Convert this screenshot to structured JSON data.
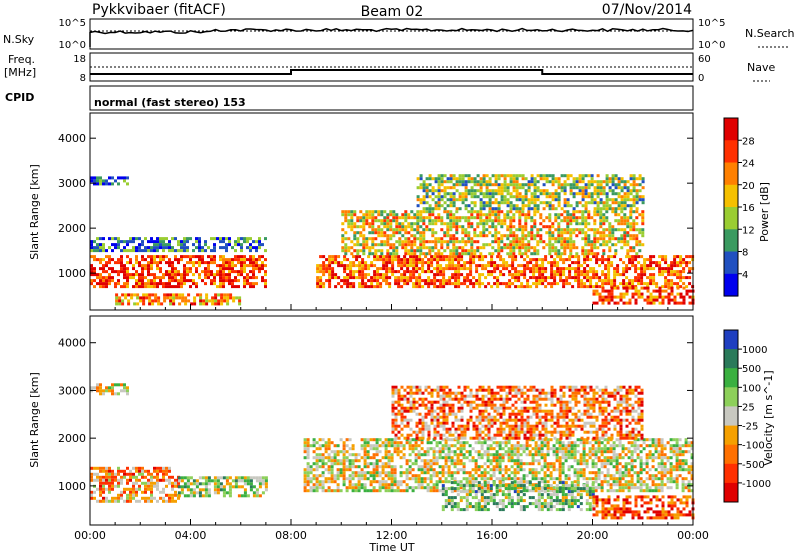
{
  "header": {
    "station": "Pykkvibaer (fitACF)",
    "beam": "Beam 02",
    "date": "07/Nov/2014"
  },
  "nsky_panel": {
    "label": "N.Sky",
    "left_ticks": [
      "10^5",
      "10^0"
    ],
    "right_label": "N.Search",
    "right_ticks": [
      "10^5",
      "10^0"
    ]
  },
  "freq_panel": {
    "label_top": "Freq.",
    "label_bottom": "[MHz]",
    "left_ticks": [
      "18",
      "8"
    ],
    "right_label": "Nave",
    "right_ticks": [
      "60",
      "0"
    ],
    "cpid_label": "CPID"
  },
  "cpid_panel": {
    "text": "normal (fast stereo) 153"
  },
  "chart_data": [
    {
      "type": "heatmap",
      "name": "power",
      "ylabel": "Slant Range [km]",
      "yticks": [
        1000,
        2000,
        3000,
        4000
      ],
      "ylim": [
        180,
        4560
      ],
      "xlim": [
        0,
        24
      ],
      "colorbar_label": "Power [dB]",
      "colorbar_ticks": [
        "28",
        "24",
        "20",
        "16",
        "12",
        "8",
        "4"
      ],
      "colors": [
        "#0000ee",
        "#2050c0",
        "#3a9a60",
        "#9acd32",
        "#f5c000",
        "#ff8000",
        "#ff3000",
        "#e00000"
      ],
      "regions": [
        {
          "x0": 0.0,
          "x1": 7.0,
          "y0": 700,
          "y1": 1400,
          "value": 26
        },
        {
          "x0": 0.0,
          "x1": 7.0,
          "y0": 1500,
          "y1": 1800,
          "value": 8
        },
        {
          "x0": 0.0,
          "x1": 1.5,
          "y0": 2950,
          "y1": 3150,
          "value": 6
        },
        {
          "x0": 1.0,
          "x1": 6.0,
          "y0": 300,
          "y1": 550,
          "value": 22
        },
        {
          "x0": 9.0,
          "x1": 24.0,
          "y0": 700,
          "y1": 1400,
          "value": 24
        },
        {
          "x0": 10.0,
          "x1": 22.0,
          "y0": 1400,
          "y1": 2400,
          "value": 18
        },
        {
          "x0": 13.0,
          "x1": 22.0,
          "y0": 2400,
          "y1": 3200,
          "value": 14
        },
        {
          "x0": 20.0,
          "x1": 24.0,
          "y0": 300,
          "y1": 700,
          "value": 26
        }
      ]
    },
    {
      "type": "heatmap",
      "name": "velocity",
      "ylabel": "Slant Range [km]",
      "yticks": [
        1000,
        2000,
        3000,
        4000
      ],
      "ylim": [
        180,
        4560
      ],
      "xlim": [
        0,
        24
      ],
      "xlabel": "Time UT",
      "xticks": [
        "00:00",
        "04:00",
        "08:00",
        "12:00",
        "16:00",
        "20:00",
        "00:00"
      ],
      "colorbar_label": "Velocity [m s^-1]",
      "colorbar_ticks": [
        "1000",
        "500",
        "100",
        "25",
        "-25",
        "-100",
        "-500",
        "-1000"
      ],
      "colors": [
        "#1f3fc0",
        "#2a7a5a",
        "#3ab040",
        "#8dd05a",
        "#c8c8c0",
        "#f5a000",
        "#ff7000",
        "#ff3000",
        "#e00000"
      ],
      "regions": [
        {
          "x0": 0.0,
          "x1": 3.5,
          "y0": 700,
          "y1": 1400,
          "value": -300
        },
        {
          "x0": 3.5,
          "x1": 7.0,
          "y0": 800,
          "y1": 1200,
          "value": 150
        },
        {
          "x0": 0.0,
          "x1": 1.5,
          "y0": 2950,
          "y1": 3150,
          "value": 0
        },
        {
          "x0": 8.5,
          "x1": 24.0,
          "y0": 900,
          "y1": 2000,
          "value": 0
        },
        {
          "x0": 12.0,
          "x1": 22.0,
          "y0": 2000,
          "y1": 3100,
          "value": -400
        },
        {
          "x0": 14.0,
          "x1": 20.0,
          "y0": 500,
          "y1": 1100,
          "value": 300
        },
        {
          "x0": 20.0,
          "x1": 24.0,
          "y0": 300,
          "y1": 800,
          "value": -600
        }
      ]
    }
  ]
}
